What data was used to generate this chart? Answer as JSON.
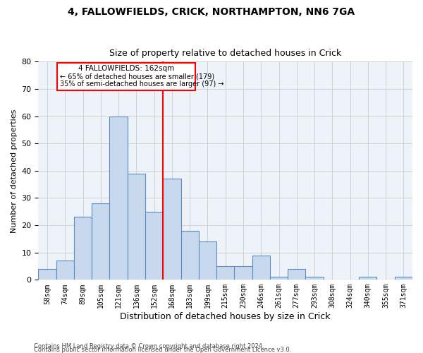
{
  "title1": "4, FALLOWFIELDS, CRICK, NORTHAMPTON, NN6 7GA",
  "title2": "Size of property relative to detached houses in Crick",
  "xlabel": "Distribution of detached houses by size in Crick",
  "ylabel": "Number of detached properties",
  "categories": [
    "58sqm",
    "74sqm",
    "89sqm",
    "105sqm",
    "121sqm",
    "136sqm",
    "152sqm",
    "168sqm",
    "183sqm",
    "199sqm",
    "215sqm",
    "230sqm",
    "246sqm",
    "261sqm",
    "277sqm",
    "293sqm",
    "308sqm",
    "324sqm",
    "340sqm",
    "355sqm",
    "371sqm"
  ],
  "values": [
    4,
    7,
    23,
    28,
    60,
    39,
    25,
    37,
    18,
    14,
    5,
    5,
    9,
    1,
    4,
    1,
    0,
    0,
    1,
    0,
    1
  ],
  "bar_color": "#c9d9ed",
  "bar_edge_color": "#5b8dc0",
  "grid_color": "#cccccc",
  "background_color": "#eef2f9",
  "marker_label": "4 FALLOWFIELDS: 162sqm",
  "annotation_line1": "← 65% of detached houses are smaller (179)",
  "annotation_line2": "35% of semi-detached houses are larger (97) →",
  "ylim": [
    0,
    80
  ],
  "yticks": [
    0,
    10,
    20,
    30,
    40,
    50,
    60,
    70,
    80
  ],
  "footer1": "Contains HM Land Registry data © Crown copyright and database right 2024.",
  "footer2": "Contains public sector information licensed under the Open Government Licence v3.0."
}
